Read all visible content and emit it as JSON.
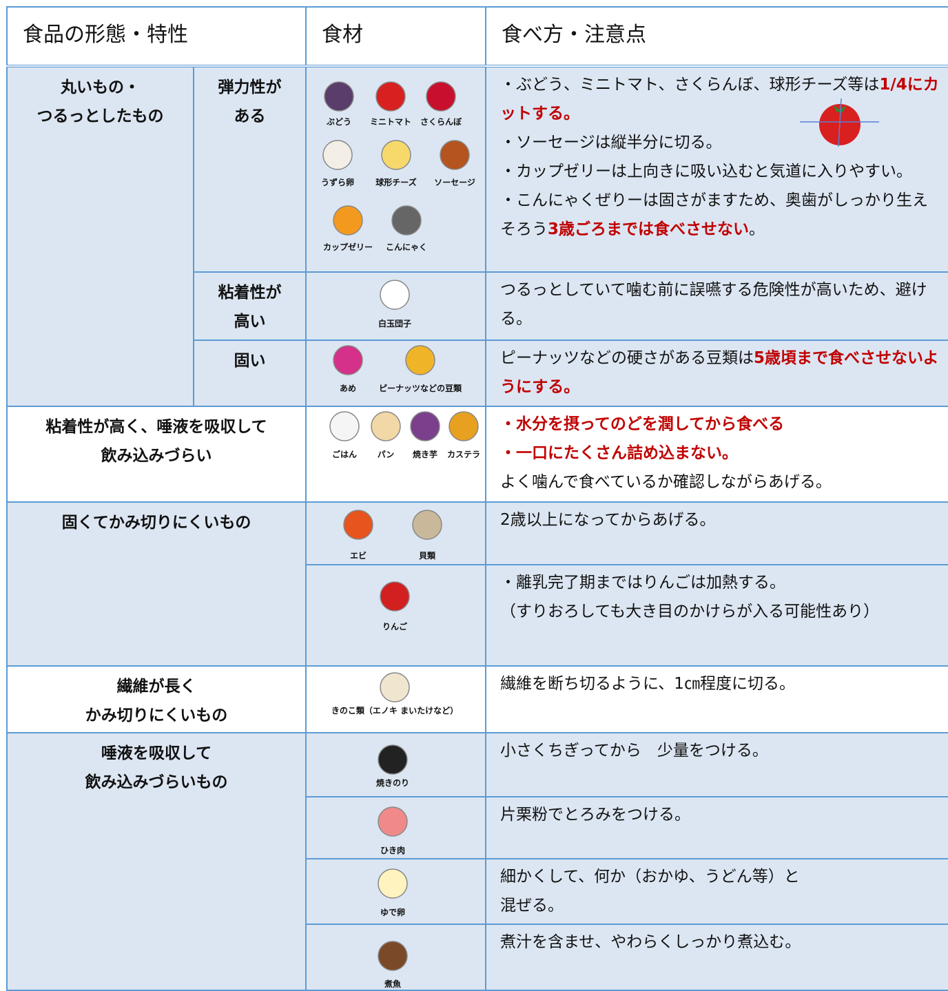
{
  "header": {
    "form": "食品の形態・特性",
    "food": "食材",
    "notes": "食べ方・注意点"
  },
  "emphasis_color": "#c00000",
  "sections": [
    {
      "category": [
        "丸いもの・",
        "つるっとしたもの"
      ],
      "rows": [
        {
          "property": [
            "弾力性が",
            "ある"
          ],
          "foods": [
            "ぶどう",
            "ミニトマト",
            "さくらんぼ",
            "うずら卵",
            "球形チーズ",
            "ソーセージ",
            "カップゼリー",
            "こんにゃく"
          ],
          "notes": [
            [
              "・ぶどう、ミニトマト、さくらんぼ、球形チーズ等は",
              {
                "text": "1/4にカットする。",
                "emphasis": true
              }
            ],
            [
              "・ソーセージは縦半分に切る。"
            ],
            [
              "・カップゼリーは上向きに吸い込むと気道に入りやすい。"
            ],
            [
              "・こんにゃくぜりーは固さがますため、奥歯がしっかり生えそろう",
              {
                "text": "3歳ごろまでは食べさせない",
                "emphasis": true
              },
              "。"
            ]
          ]
        },
        {
          "property": [
            "粘着性が",
            "高い"
          ],
          "foods": [
            "白玉団子"
          ],
          "notes": [
            [
              "つるっとしていて噛む前に誤嚥する危険性が高いため、避ける。"
            ]
          ]
        },
        {
          "property": [
            "固い"
          ],
          "foods": [
            "あめ",
            "ピーナッツなどの豆類"
          ],
          "notes": [
            [
              "ピーナッツなどの硬さがある豆類は",
              {
                "text": "5歳頃まで食べさせないようにする。",
                "emphasis": true
              }
            ]
          ]
        }
      ]
    },
    {
      "category": [
        "粘着性が高く、唾液を吸収して",
        "飲み込みづらい"
      ],
      "rows": [
        {
          "foods": [
            "ごはん",
            "パン",
            "焼き芋",
            "カステラ"
          ],
          "notes": [
            [
              {
                "text": "・水分を摂ってのどを潤してから食べる",
                "emphasis": true
              }
            ],
            [
              {
                "text": "・一口にたくさん詰め込まない。",
                "emphasis": true
              }
            ],
            [
              "よく噛んで食べているか確認しながらあげる。"
            ]
          ]
        }
      ]
    },
    {
      "category": [
        "固くてかみ切りにくいもの"
      ],
      "rows": [
        {
          "foods": [
            "エビ",
            "貝類"
          ],
          "notes": [
            [
              "2歳以上になってからあげる。"
            ]
          ]
        },
        {
          "foods": [
            "りんご"
          ],
          "notes": [
            [
              "・離乳完了期まではりんごは加熱する。"
            ],
            [
              "（すりおろしても大き目のかけらが入る可能性あり）"
            ]
          ]
        }
      ]
    },
    {
      "category": [
        "繊維が長く",
        "かみ切りにくいもの"
      ],
      "rows": [
        {
          "foods": [
            "きのこ類（エノキ まいたけなど）"
          ],
          "notes": [
            [
              "繊維を断ち切るように、1㎝程度に切る。"
            ]
          ]
        }
      ]
    },
    {
      "category": [
        "唾液を吸収して",
        "飲み込みづらいもの"
      ],
      "rows": [
        {
          "foods": [
            "焼きのり"
          ],
          "notes": [
            [
              "小さくちぎってから　少量をつける。"
            ]
          ]
        },
        {
          "foods": [
            "ひき肉"
          ],
          "notes": [
            [
              "片栗粉でとろみをつける。"
            ]
          ]
        },
        {
          "foods": [
            "ゆで卵"
          ],
          "notes": [
            [
              "細かくして、何か（おかゆ、うどん等）と"
            ],
            [
              "混ぜる。"
            ]
          ]
        },
        {
          "foods": [
            "煮魚"
          ],
          "notes": [
            [
              "煮汁を含ませ、やわらくしっかり煮込む。"
            ]
          ]
        }
      ]
    }
  ]
}
